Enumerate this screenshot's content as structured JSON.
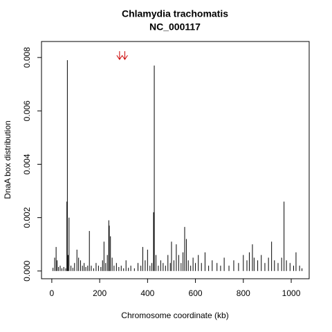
{
  "chart_data": {
    "type": "spike",
    "title": "Chlamydia trachomatis",
    "subtitle": "NC_000117",
    "xlabel": "Chromosome coordinate (kb)",
    "ylabel": "DnaA box distribution",
    "color": "#000000",
    "arrows_x": [
      283,
      305
    ],
    "arrow_color": "#cc0000",
    "xlim": [
      -43,
      1075
    ],
    "ylim": [
      -0.00029,
      0.0086
    ],
    "xticks": [
      0,
      200,
      400,
      600,
      800,
      1000
    ],
    "yticks": [
      {
        "value": 0,
        "label": "0.000"
      },
      {
        "value": 0.002,
        "label": "0.002"
      },
      {
        "value": 0.004,
        "label": "0.004"
      },
      {
        "value": 0.006,
        "label": "0.006"
      },
      {
        "value": 0.008,
        "label": "0.008"
      }
    ],
    "x": [
      5,
      12,
      18,
      22,
      28,
      35,
      42,
      50,
      58,
      63,
      65,
      68,
      72,
      80,
      88,
      95,
      105,
      112,
      120,
      128,
      135,
      142,
      150,
      157,
      165,
      175,
      185,
      195,
      205,
      212,
      218,
      225,
      232,
      238,
      240,
      245,
      252,
      260,
      270,
      280,
      290,
      300,
      310,
      320,
      330,
      345,
      360,
      372,
      380,
      390,
      400,
      410,
      418,
      425,
      428,
      435,
      445,
      455,
      465,
      475,
      485,
      495,
      500,
      510,
      520,
      530,
      540,
      548,
      555,
      562,
      570,
      580,
      590,
      600,
      612,
      625,
      640,
      655,
      670,
      690,
      705,
      720,
      740,
      760,
      780,
      800,
      815,
      825,
      838,
      845,
      860,
      875,
      890,
      905,
      918,
      930,
      945,
      960,
      970,
      980,
      995,
      1010,
      1020,
      1035,
      1045
    ],
    "values": [
      0.00012,
      0.0005,
      0.0009,
      0.0004,
      0.00015,
      0.0002,
      0.0001,
      0.00015,
      0.0001,
      0.0026,
      0.0079,
      0.0006,
      0.002,
      0.0002,
      0.00012,
      0.0003,
      0.0008,
      0.0005,
      0.0004,
      0.0002,
      0.0003,
      0.00015,
      0.0002,
      0.0015,
      0.0002,
      0.0001,
      0.0003,
      0.0002,
      0.00015,
      0.0004,
      0.0011,
      0.0003,
      0.0006,
      0.0019,
      0.0017,
      0.0013,
      0.0005,
      0.0002,
      0.0003,
      0.00015,
      0.0002,
      0.0001,
      0.0004,
      0.00012,
      0.0002,
      0.0001,
      0.0003,
      0.0002,
      0.0009,
      0.0004,
      0.0008,
      0.0002,
      0.0003,
      0.0022,
      0.0077,
      0.0006,
      0.0002,
      0.0004,
      0.0003,
      0.0002,
      0.0006,
      0.0003,
      0.0011,
      0.0004,
      0.001,
      0.0006,
      0.0003,
      0.0007,
      0.00165,
      0.0012,
      0.0004,
      0.0002,
      0.0005,
      0.0003,
      0.0006,
      0.0003,
      0.0007,
      0.0002,
      0.0004,
      0.0003,
      0.0002,
      0.0005,
      0.0002,
      0.0004,
      0.0003,
      0.0006,
      0.0004,
      0.0007,
      0.001,
      0.0005,
      0.0004,
      0.0006,
      0.0003,
      0.0005,
      0.0011,
      0.0004,
      0.0003,
      0.0005,
      0.0026,
      0.0004,
      0.0003,
      0.0002,
      0.0007,
      0.0002,
      0.0001
    ]
  }
}
